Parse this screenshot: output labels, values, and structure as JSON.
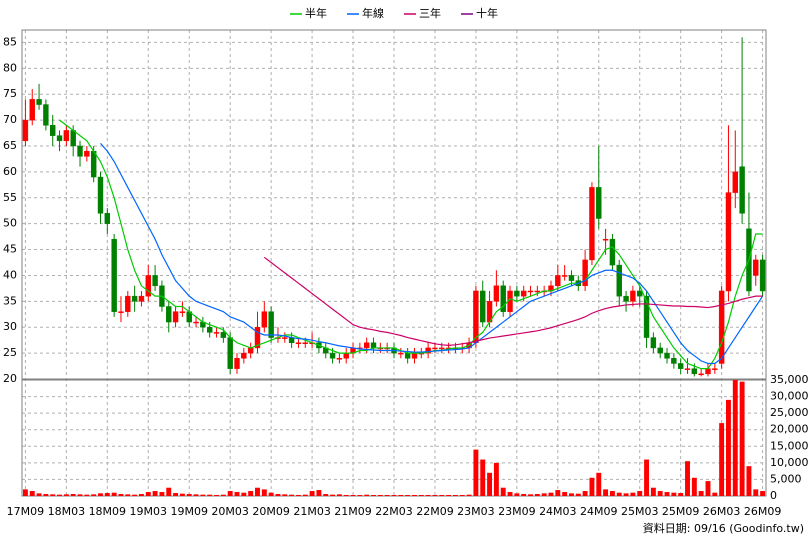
{
  "chart_data": {
    "type": "candlestick",
    "categories": [
      "17M09",
      null,
      null,
      null,
      null,
      null,
      "18M03",
      null,
      null,
      null,
      null,
      null,
      "18M09",
      null,
      null,
      null,
      null,
      null,
      "19M03",
      null,
      null,
      null,
      null,
      null,
      "19M09",
      null,
      null,
      null,
      null,
      null,
      "20M03",
      null,
      null,
      null,
      null,
      null,
      "20M09",
      null,
      null,
      null,
      null,
      null,
      "21M03",
      null,
      null,
      null,
      null,
      null,
      "21M09",
      null,
      null,
      null,
      null,
      null,
      "22M03",
      null,
      null,
      null,
      null,
      null,
      "22M09",
      null,
      null,
      null,
      null,
      null,
      "23M03",
      null,
      null,
      null,
      null,
      null,
      "23M09",
      null,
      null,
      null,
      null,
      null,
      "24M03",
      null,
      null,
      null,
      null,
      null,
      "24M09",
      null,
      null,
      null,
      null,
      null,
      "25M03",
      null,
      null,
      null,
      null,
      null,
      "25M09",
      null,
      null,
      null,
      null,
      null,
      "26M03",
      null,
      null,
      null,
      null,
      null,
      "26M09"
    ],
    "open": [
      66,
      70,
      74,
      73,
      69,
      67,
      66,
      68,
      65,
      63,
      64,
      59,
      52,
      47,
      33,
      33,
      36,
      35,
      36,
      40,
      38,
      34,
      31,
      33,
      33,
      31,
      31,
      30,
      29,
      29,
      28,
      22,
      24,
      25,
      26,
      30,
      33,
      28,
      28,
      28,
      27,
      27,
      27,
      27,
      26,
      25,
      24,
      24,
      25,
      26,
      26,
      27,
      26,
      26,
      26,
      25,
      25,
      24,
      25,
      25,
      26,
      26,
      26,
      26,
      26,
      26,
      27,
      37,
      31,
      35,
      38,
      33,
      37,
      36,
      37,
      37,
      37,
      37,
      38,
      40,
      40,
      39,
      38,
      43,
      57,
      47,
      47,
      42,
      36,
      35,
      37,
      36,
      28,
      26,
      25,
      24,
      23,
      22,
      22,
      21,
      21,
      22,
      23,
      37,
      56,
      61,
      49,
      40,
      43
    ],
    "high": [
      74,
      76,
      77,
      74,
      71,
      68,
      69,
      69,
      66,
      65,
      65,
      60,
      53,
      48,
      36,
      37,
      38,
      37,
      42,
      42,
      39,
      35,
      34,
      35,
      34,
      32,
      32,
      31,
      30,
      30,
      29,
      25,
      26,
      27,
      33,
      35,
      34,
      30,
      29,
      29,
      28,
      28,
      29,
      28,
      27,
      26,
      25,
      26,
      27,
      27,
      28,
      28,
      27,
      27,
      27,
      26,
      26,
      26,
      26,
      27,
      27,
      27,
      27,
      27,
      27,
      28,
      38,
      39,
      37,
      41,
      39,
      38,
      38,
      38,
      38,
      38,
      38,
      39,
      42,
      42,
      41,
      40,
      45,
      58,
      65,
      49,
      48,
      43,
      37,
      38,
      38,
      37,
      29,
      27,
      26,
      25,
      24,
      24,
      23,
      22,
      23,
      23,
      38,
      69,
      68,
      86,
      56,
      44,
      44
    ],
    "low": [
      65,
      69,
      72,
      68,
      65,
      64,
      65,
      63,
      61,
      62,
      58,
      50,
      48,
      32,
      31,
      32,
      33,
      34,
      35,
      37,
      33,
      29,
      30,
      32,
      30,
      30,
      29,
      28,
      28,
      27,
      21,
      21,
      23,
      24,
      25,
      29,
      27,
      27,
      27,
      26,
      26,
      26,
      26,
      25,
      24,
      23,
      23,
      23,
      24,
      25,
      25,
      25,
      25,
      25,
      24,
      24,
      23,
      23,
      24,
      24,
      25,
      25,
      25,
      25,
      25,
      25,
      26,
      30,
      30,
      34,
      32,
      32,
      35,
      35,
      36,
      36,
      36,
      36,
      37,
      39,
      38,
      37,
      37,
      42,
      49,
      44,
      41,
      34,
      33,
      34,
      34,
      26,
      25,
      24,
      23,
      22,
      21,
      21,
      20.5,
      20.5,
      20.5,
      21,
      22,
      35,
      53,
      50,
      36,
      38,
      36
    ],
    "close": [
      70,
      74,
      73,
      69,
      67,
      66,
      68,
      65,
      63,
      64,
      59,
      52,
      50,
      33,
      33,
      36,
      35,
      36,
      40,
      38,
      34,
      31,
      33,
      33,
      31,
      31,
      30,
      29,
      29,
      28,
      22,
      24,
      25,
      26,
      30,
      33,
      28,
      28,
      28,
      27,
      27,
      27,
      27,
      26,
      25,
      24,
      24,
      25,
      26,
      26,
      27,
      26,
      26,
      26,
      25,
      25,
      24,
      25,
      25,
      26,
      26,
      26,
      26,
      26,
      26,
      27,
      37,
      31,
      35,
      38,
      33,
      37,
      36,
      37,
      37,
      37,
      37,
      38,
      40,
      40,
      39,
      38,
      43,
      57,
      51,
      47,
      42,
      36,
      35,
      37,
      36,
      28,
      26,
      25,
      24,
      23,
      22,
      22,
      21,
      21,
      22,
      22,
      37,
      56,
      60,
      52,
      37,
      43,
      37
    ],
    "up_color": "#ff0000",
    "down_color": "#008000",
    "ylim": [
      20,
      87.4
    ],
    "yticks": [
      20,
      25,
      30,
      35,
      40,
      45,
      50,
      55,
      60,
      65,
      70,
      75,
      80,
      85
    ],
    "grid": true,
    "legend": "top",
    "series": [
      {
        "name": "半年",
        "color": "#00cc00",
        "values": [
          null,
          null,
          null,
          null,
          null,
          70,
          69,
          68,
          67,
          66,
          64,
          62,
          59,
          55,
          50,
          45,
          41,
          38,
          37,
          36,
          36,
          35,
          34,
          34,
          33,
          32,
          31,
          30.5,
          30,
          29.5,
          28,
          27,
          26.5,
          26,
          26.5,
          27,
          27.5,
          28,
          28.5,
          28.5,
          28,
          27.5,
          27,
          26.5,
          26,
          25.5,
          25,
          25,
          25,
          25.5,
          25.5,
          26,
          26,
          26,
          26,
          25.5,
          25,
          25,
          25,
          25.2,
          25.5,
          25.5,
          25.8,
          26,
          26,
          26.5,
          28,
          29,
          31,
          33,
          34,
          35.5,
          35,
          35.5,
          36,
          36.5,
          37,
          37,
          37.5,
          38,
          38.5,
          38.5,
          39,
          41,
          43,
          45,
          45.5,
          44,
          42,
          40,
          38,
          35,
          32,
          30,
          28,
          26,
          24.5,
          23,
          22.5,
          22,
          22,
          24,
          27,
          31,
          36,
          40,
          43,
          48,
          48
        ]
      },
      {
        "name": "年線",
        "color": "#0066ff",
        "values": [
          null,
          null,
          null,
          null,
          null,
          null,
          null,
          null,
          null,
          null,
          null,
          65.5,
          64,
          62,
          59.5,
          57,
          54.5,
          52,
          49.5,
          47,
          44,
          41.5,
          39,
          37.5,
          36,
          35,
          34.5,
          34,
          33.5,
          33,
          32,
          31.5,
          31,
          30,
          29,
          28.5,
          28.5,
          28.5,
          28.3,
          28,
          27.8,
          27.7,
          27.5,
          27.2,
          27,
          26.7,
          26.4,
          26.2,
          26,
          25.8,
          25.7,
          25.6,
          25.5,
          25.5,
          25.5,
          25.4,
          25.3,
          25.2,
          25.2,
          25.3,
          25.4,
          25.5,
          25.6,
          25.7,
          25.8,
          26,
          27,
          28,
          29,
          30,
          31,
          32,
          33,
          34,
          35,
          35.5,
          36,
          36.5,
          37,
          37.5,
          38,
          38.5,
          39,
          40,
          40.5,
          41,
          41,
          40.5,
          40,
          39.5,
          38.5,
          37,
          35,
          33,
          31,
          29,
          27,
          25.5,
          24.5,
          23.5,
          23,
          23,
          24,
          26,
          28,
          30,
          32,
          34,
          36
        ]
      },
      {
        "name": "三年",
        "color": "#cc0066",
        "values": [
          null,
          null,
          null,
          null,
          null,
          null,
          null,
          null,
          null,
          null,
          null,
          null,
          null,
          null,
          null,
          null,
          null,
          null,
          null,
          null,
          null,
          null,
          null,
          null,
          null,
          null,
          null,
          null,
          null,
          null,
          null,
          null,
          null,
          null,
          null,
          43.5,
          42.5,
          41.5,
          40.5,
          39.5,
          38.5,
          37.5,
          36.5,
          35.5,
          34.5,
          33.5,
          32.5,
          31.5,
          30.5,
          30,
          29.7,
          29.5,
          29.2,
          29,
          28.7,
          28.4,
          28,
          27.7,
          27.4,
          27.1,
          26.8,
          26.6,
          26.5,
          26.6,
          26.8,
          27,
          27.3,
          27.6,
          27.9,
          28.1,
          28.3,
          28.5,
          28.7,
          28.9,
          29.1,
          29.3,
          29.6,
          29.9,
          30.3,
          30.7,
          31.1,
          31.5,
          32,
          32.7,
          33.2,
          33.6,
          33.9,
          34.1,
          34.3,
          34.4,
          34.5,
          34.5,
          34.4,
          34.3,
          34.2,
          34.1,
          34.1,
          34,
          34,
          33.9,
          33.8,
          34,
          34.3,
          34.6,
          35,
          35.4,
          35.7,
          36,
          36
        ]
      },
      {
        "name": "十年",
        "color": "#800080",
        "values": [
          null,
          null,
          null,
          null,
          null,
          null,
          null,
          null,
          null,
          null,
          null,
          null,
          null,
          null,
          null,
          null,
          null,
          null,
          null,
          null,
          null,
          null,
          null,
          null,
          null,
          null,
          null,
          null,
          null,
          null,
          null,
          null,
          null,
          null,
          null,
          null,
          null,
          null,
          null,
          null,
          null,
          null,
          null,
          null,
          null,
          null,
          null,
          null,
          null,
          null,
          null,
          null,
          null,
          null,
          null,
          null,
          null,
          null,
          null,
          null,
          null,
          null,
          null,
          null,
          null,
          null,
          null,
          null,
          null,
          null,
          null,
          null,
          null,
          null,
          null,
          null,
          null,
          null,
          null,
          null,
          null,
          null,
          null,
          null,
          null,
          null,
          null,
          null,
          null,
          null,
          null,
          null,
          null,
          null,
          null,
          null,
          null,
          null,
          null,
          null,
          null,
          null,
          null,
          null,
          null,
          null,
          null,
          null,
          null
        ]
      }
    ],
    "volume": {
      "color": "#ff0000",
      "values": [
        2000,
        1500,
        800,
        600,
        500,
        400,
        500,
        600,
        500,
        400,
        500,
        800,
        900,
        1000,
        600,
        500,
        400,
        600,
        1200,
        1500,
        1200,
        2500,
        900,
        700,
        600,
        500,
        400,
        400,
        300,
        400,
        1500,
        1200,
        1000,
        1500,
        2500,
        2000,
        1000,
        600,
        500,
        400,
        300,
        400,
        1500,
        1800,
        600,
        400,
        500,
        300,
        300,
        300,
        400,
        300,
        300,
        300,
        300,
        300,
        300,
        300,
        300,
        300,
        300,
        300,
        300,
        300,
        300,
        400,
        14000,
        11000,
        7000,
        10000,
        2500,
        1200,
        800,
        600,
        500,
        600,
        800,
        1000,
        1800,
        1200,
        800,
        700,
        1500,
        5500,
        7000,
        2000,
        1500,
        1000,
        800,
        1000,
        1500,
        11000,
        2500,
        1500,
        1200,
        1000,
        900,
        10500,
        5500,
        1500,
        4500,
        1000,
        22000,
        29000,
        35000,
        34500,
        9000,
        2000,
        1500
      ],
      "ylim": [
        0,
        35000
      ],
      "yticks": [
        0,
        {
          "value": 5000,
          "label": "5,000"
        },
        {
          "value": 10000,
          "label": "10,000"
        },
        {
          "value": 15000,
          "label": "15,000"
        },
        {
          "value": 20000,
          "label": "20,000"
        },
        {
          "value": 25000,
          "label": "25,000"
        },
        {
          "value": 30000,
          "label": "30,000"
        },
        {
          "value": 35000,
          "label": "35,000"
        }
      ]
    },
    "footer": "資料日期: 09/16 (Goodinfo.tw)"
  }
}
